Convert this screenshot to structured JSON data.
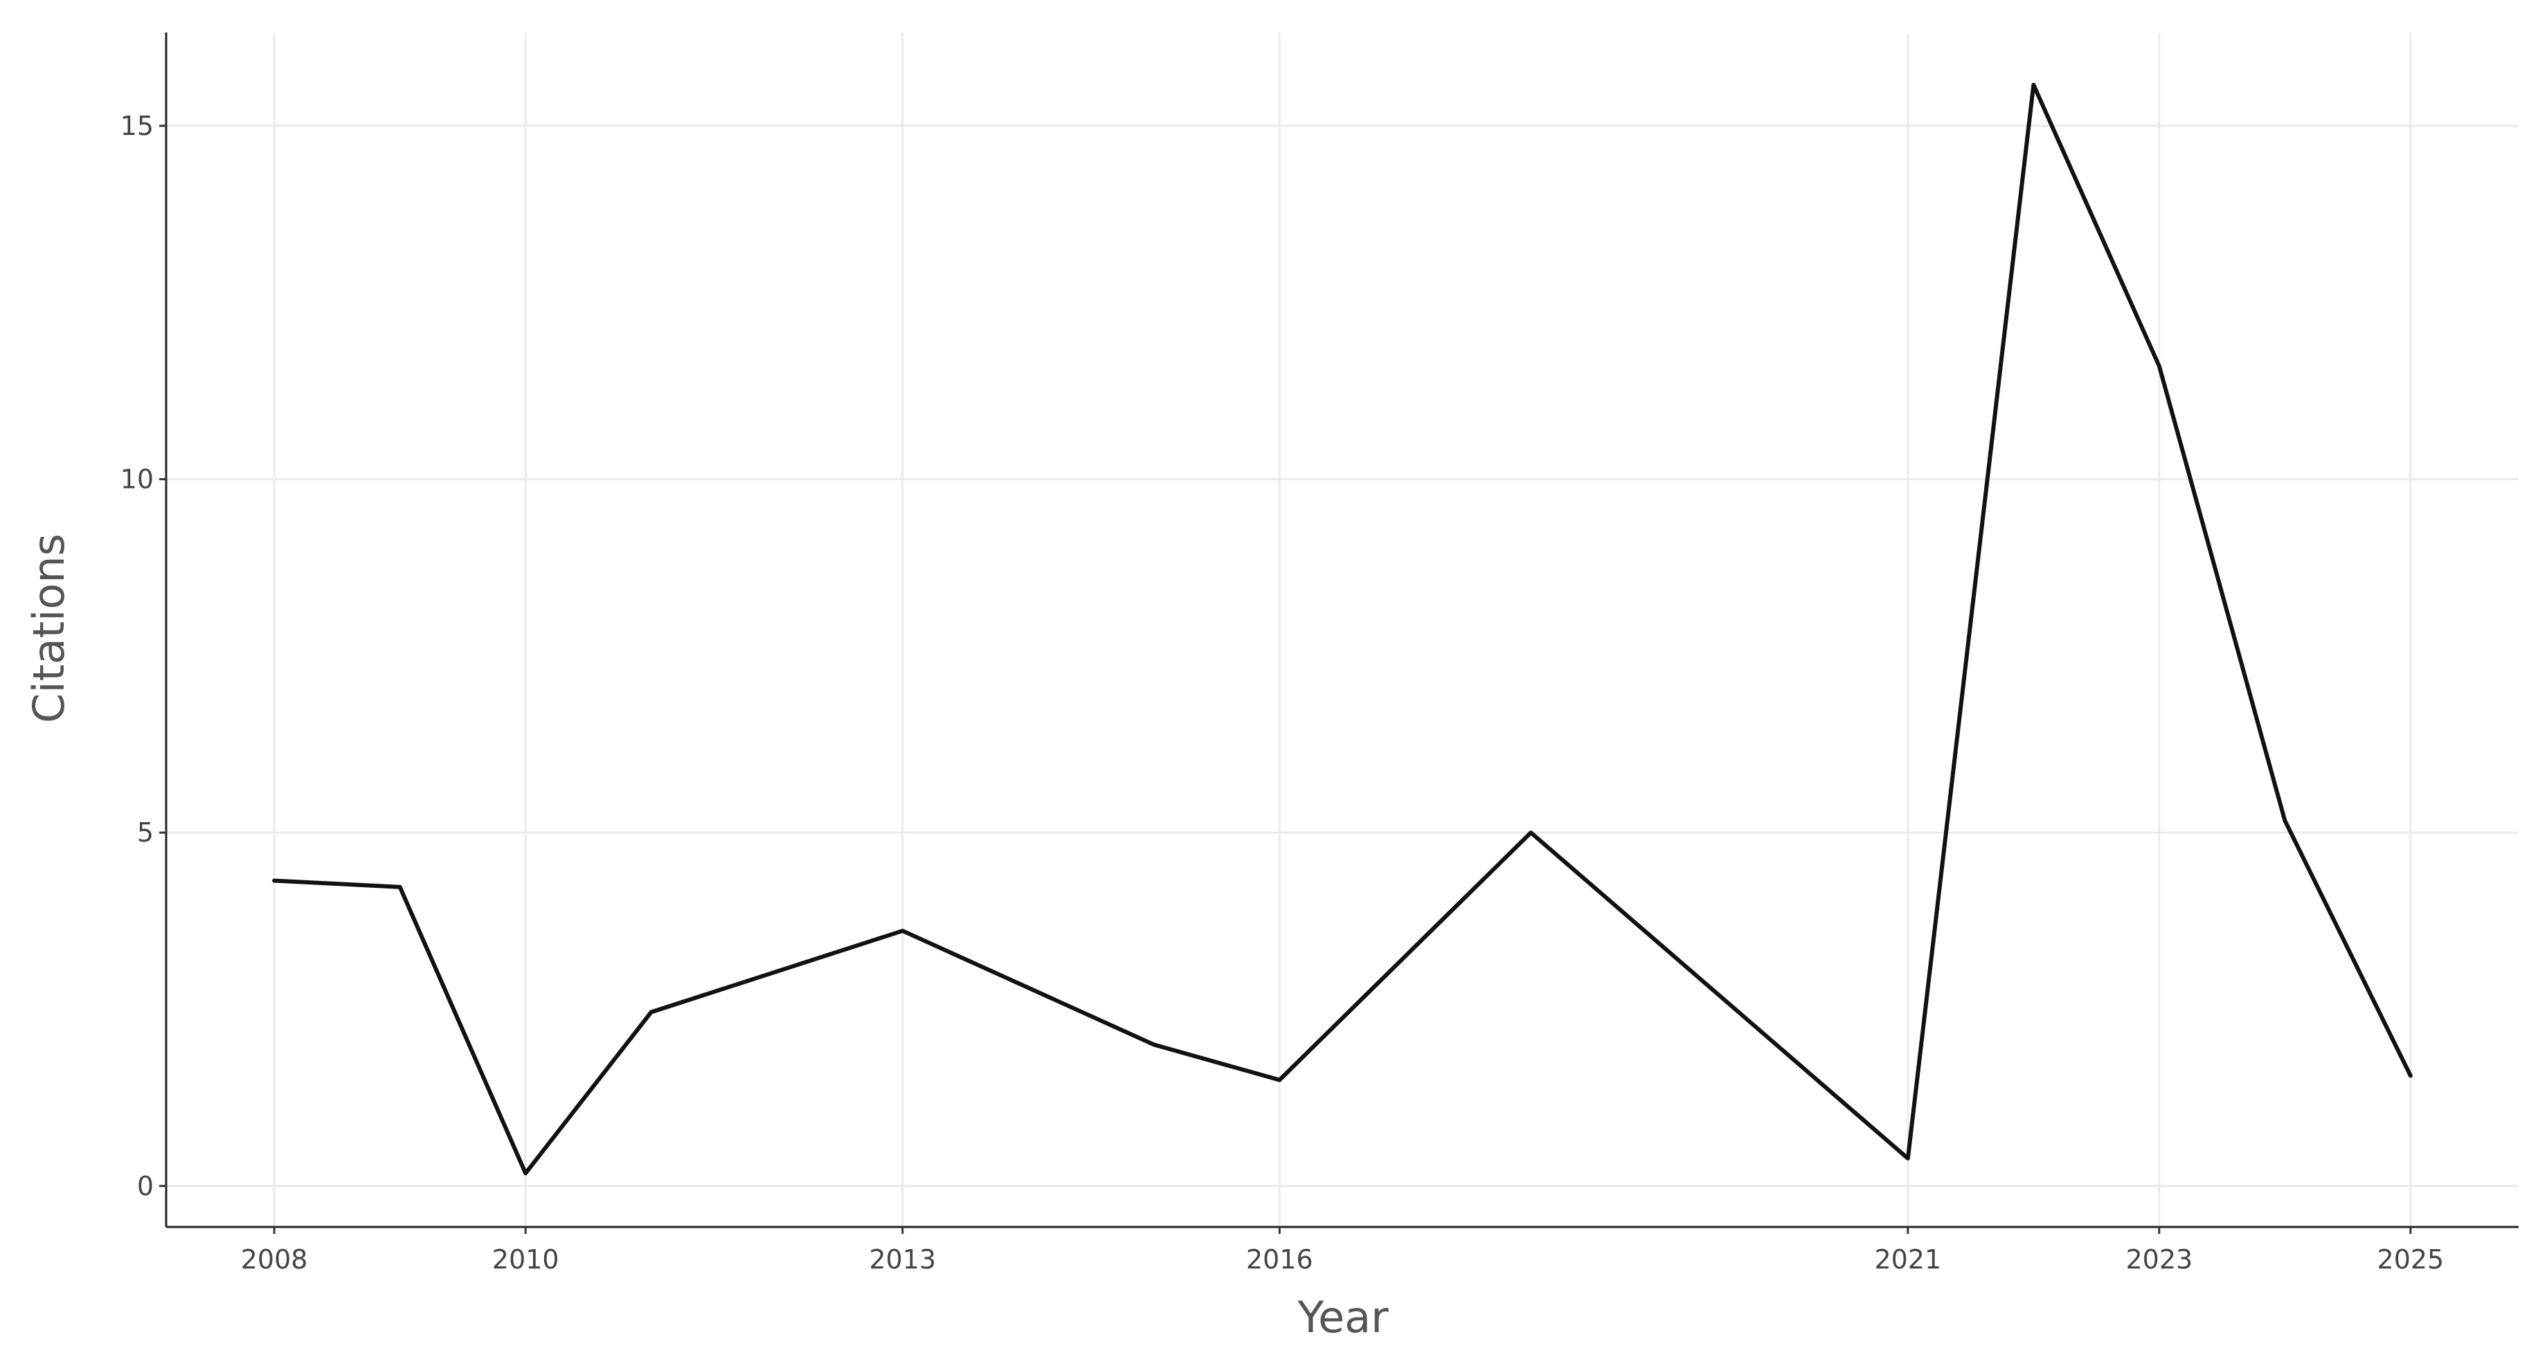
{
  "chart_data": {
    "type": "line",
    "x_label": "Year",
    "y_label": "Citations",
    "x": [
      2008,
      2009,
      2010,
      2011,
      2013,
      2015,
      2016,
      2018,
      2021,
      2022,
      2023,
      2024,
      2025
    ],
    "values": [
      4.32,
      4.23,
      0.18,
      2.46,
      3.61,
      2.0,
      1.5,
      5.0,
      0.39,
      15.58,
      11.6,
      5.17,
      1.56
    ],
    "color": "#111111",
    "xlim": [
      2007.14,
      2025.86
    ],
    "xticks": [
      2008,
      2010,
      2013,
      2016,
      2021,
      2023,
      2025
    ],
    "ylim": [
      -0.58,
      16.32
    ],
    "yticks": [
      0,
      5,
      10,
      15
    ],
    "grid": true
  }
}
